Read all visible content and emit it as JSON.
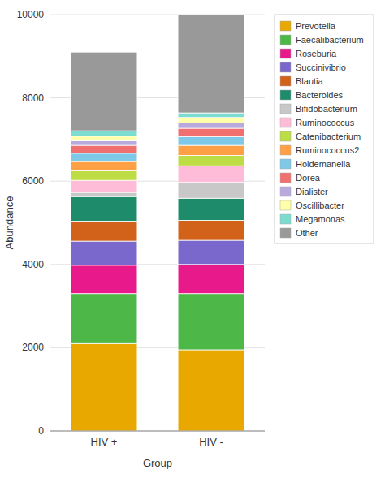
{
  "chart_data": {
    "type": "bar",
    "stacked": true,
    "xlabel": "Group",
    "ylabel": "Abundance",
    "categories": [
      "HIV +",
      "HIV -"
    ],
    "series": [
      {
        "name": "Prevotella",
        "color": "#E8A800",
        "values": [
          2100,
          1950
        ]
      },
      {
        "name": "Faecalibacterium",
        "color": "#4DB848",
        "values": [
          1200,
          1350
        ]
      },
      {
        "name": "Roseburia",
        "color": "#E8198B",
        "values": [
          680,
          700
        ]
      },
      {
        "name": "Succinivibrio",
        "color": "#7B68CC",
        "values": [
          580,
          580
        ]
      },
      {
        "name": "Blautia",
        "color": "#D2611A",
        "values": [
          480,
          480
        ]
      },
      {
        "name": "Bacteroides",
        "color": "#1E8B6B",
        "values": [
          590,
          530
        ]
      },
      {
        "name": "Bifidobacterium",
        "color": "#C8C8C8",
        "values": [
          100,
          380
        ]
      },
      {
        "name": "Ruminococcus",
        "color": "#FFBCD9",
        "values": [
          290,
          400
        ]
      },
      {
        "name": "Catenibacterium",
        "color": "#BEDD44",
        "values": [
          230,
          250
        ]
      },
      {
        "name": "Ruminococcus2",
        "color": "#FFA044",
        "values": [
          220,
          240
        ]
      },
      {
        "name": "Holdemanella",
        "color": "#7EC8E8",
        "values": [
          200,
          210
        ]
      },
      {
        "name": "Dorea",
        "color": "#F07070",
        "values": [
          190,
          200
        ]
      },
      {
        "name": "Dialister",
        "color": "#B8AADC",
        "values": [
          110,
          130
        ]
      },
      {
        "name": "Oscillibacter",
        "color": "#FFFFAA",
        "values": [
          110,
          130
        ]
      },
      {
        "name": "Megamonas",
        "color": "#7DDCD0",
        "values": [
          130,
          110
        ]
      },
      {
        "name": "Other",
        "color": "#999999",
        "values": [
          1890,
          2360
        ]
      }
    ],
    "ylim": [
      0,
      10000
    ],
    "yticks": [
      0,
      2000,
      4000,
      6000,
      8000,
      10000
    ],
    "grid": true,
    "legend": "right"
  }
}
